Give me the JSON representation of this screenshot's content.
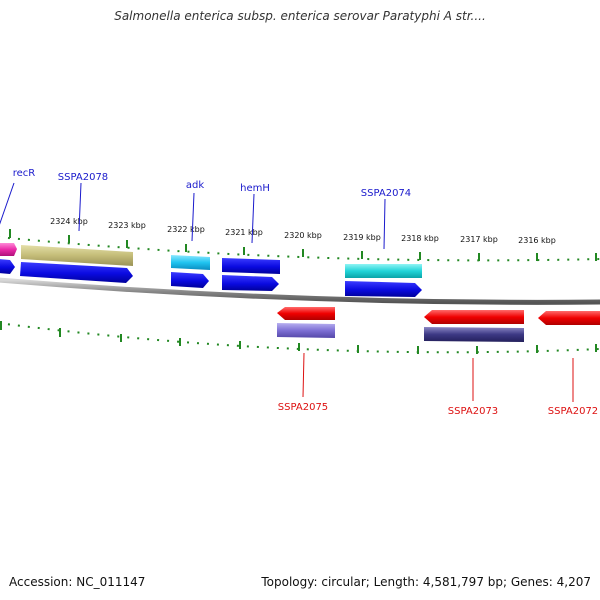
{
  "title": "Salmonella enterica subsp. enterica serovar Paratyphi A str....",
  "accession_text": "Accession: NC_011147",
  "summary_text": "Topology: circular; Length: 4,581,797 bp; Genes: 4,207",
  "ruler_labels": [
    "2324 kbp",
    "2323 kbp",
    "2322 kbp",
    "2321 kbp",
    "2320 kbp",
    "2319 kbp",
    "2318 kbp",
    "2317 kbp",
    "2316 kbp"
  ],
  "colors": {
    "forward_label": "#1a1acc",
    "reverse_label": "#dd1111",
    "ticks": "#228822",
    "backbone": "#8a8a8a"
  },
  "forward_genes": [
    {
      "name": "recR"
    },
    {
      "name": "SSPA2078"
    },
    {
      "name": "adk"
    },
    {
      "name": "hemH"
    },
    {
      "name": "SSPA2074"
    }
  ],
  "reverse_genes": [
    {
      "name": "SSPA2075"
    },
    {
      "name": "SSPA2073"
    },
    {
      "name": "SSPA2072"
    }
  ]
}
